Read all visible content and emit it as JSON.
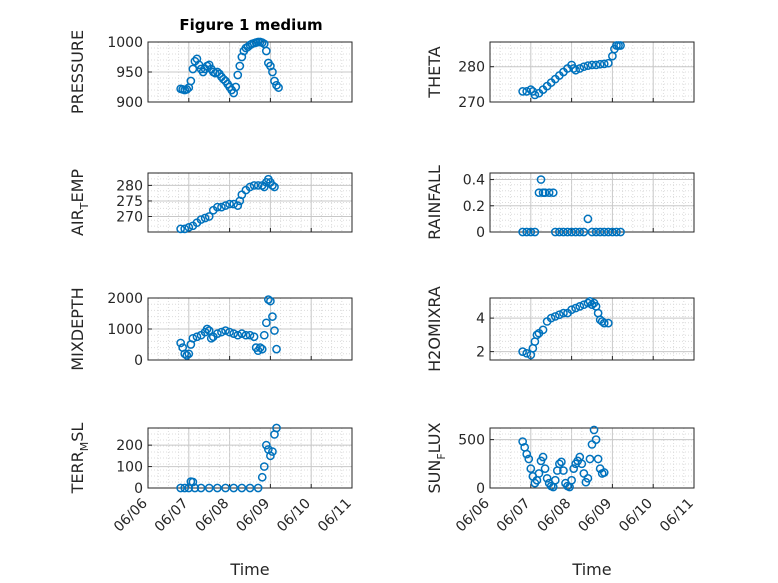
{
  "title": "Figure 1 medium",
  "marker_color": "#0072BD",
  "x_date_ticks": [
    "06/06",
    "06/07",
    "06/08",
    "06/09",
    "06/10",
    "06/11"
  ],
  "x_domain_days": [
    6,
    11
  ],
  "x_axis_label": "Time",
  "chart_data": [
    {
      "type": "scatter",
      "ylabel": "PRESSURE",
      "ylim": [
        900,
        1000
      ],
      "yticks": [
        "900",
        "950",
        "1000"
      ],
      "grid": true,
      "points": [
        [
          6.8,
          922
        ],
        [
          6.85,
          921
        ],
        [
          6.9,
          920
        ],
        [
          6.95,
          921
        ],
        [
          7.0,
          924
        ],
        [
          7.05,
          935
        ],
        [
          7.1,
          955
        ],
        [
          7.15,
          968
        ],
        [
          7.2,
          972
        ],
        [
          7.25,
          962
        ],
        [
          7.3,
          955
        ],
        [
          7.35,
          950
        ],
        [
          7.4,
          955
        ],
        [
          7.45,
          960
        ],
        [
          7.5,
          962
        ],
        [
          7.55,
          955
        ],
        [
          7.6,
          950
        ],
        [
          7.65,
          948
        ],
        [
          7.7,
          950
        ],
        [
          7.75,
          947
        ],
        [
          7.8,
          942
        ],
        [
          7.85,
          938
        ],
        [
          7.9,
          935
        ],
        [
          7.95,
          930
        ],
        [
          8.0,
          925
        ],
        [
          8.05,
          920
        ],
        [
          8.1,
          915
        ],
        [
          8.15,
          925
        ],
        [
          8.2,
          945
        ],
        [
          8.25,
          960
        ],
        [
          8.3,
          975
        ],
        [
          8.35,
          985
        ],
        [
          8.4,
          990
        ],
        [
          8.45,
          992
        ],
        [
          8.5,
          995
        ],
        [
          8.55,
          997
        ],
        [
          8.6,
          998
        ],
        [
          8.65,
          999
        ],
        [
          8.7,
          1000
        ],
        [
          8.75,
          1000
        ],
        [
          8.8,
          999
        ],
        [
          8.85,
          997
        ],
        [
          8.9,
          985
        ],
        [
          8.95,
          965
        ],
        [
          9.0,
          960
        ],
        [
          9.05,
          950
        ],
        [
          9.1,
          935
        ],
        [
          9.15,
          928
        ],
        [
          9.2,
          924
        ]
      ]
    },
    {
      "type": "scatter",
      "ylabel": "THETA",
      "ylim": [
        270,
        287
      ],
      "yticks": [
        "270",
        "280"
      ],
      "grid": true,
      "points": [
        [
          6.8,
          273
        ],
        [
          6.9,
          273
        ],
        [
          7.0,
          273.5
        ],
        [
          7.05,
          273
        ],
        [
          7.1,
          272
        ],
        [
          7.2,
          272.5
        ],
        [
          7.3,
          273.5
        ],
        [
          7.4,
          274.5
        ],
        [
          7.5,
          275.5
        ],
        [
          7.6,
          276.5
        ],
        [
          7.7,
          277.5
        ],
        [
          7.8,
          278.5
        ],
        [
          7.9,
          279.5
        ],
        [
          8.0,
          280.5
        ],
        [
          8.05,
          279.5
        ],
        [
          8.1,
          279
        ],
        [
          8.2,
          279.5
        ],
        [
          8.3,
          280
        ],
        [
          8.4,
          280.3
        ],
        [
          8.5,
          280.5
        ],
        [
          8.6,
          280.5
        ],
        [
          8.7,
          280.7
        ],
        [
          8.8,
          280.8
        ],
        [
          8.9,
          281
        ],
        [
          9.0,
          283
        ],
        [
          9.05,
          285
        ],
        [
          9.1,
          286
        ],
        [
          9.15,
          286
        ],
        [
          9.2,
          286
        ]
      ]
    },
    {
      "type": "scatter",
      "ylabel": "AIR_TEMP",
      "ylim": [
        265,
        284
      ],
      "yticks": [
        "270",
        "275",
        "280"
      ],
      "grid": true,
      "points": [
        [
          6.8,
          266
        ],
        [
          6.9,
          266
        ],
        [
          7.0,
          266.5
        ],
        [
          7.1,
          267
        ],
        [
          7.2,
          268
        ],
        [
          7.3,
          269
        ],
        [
          7.4,
          269.5
        ],
        [
          7.5,
          270
        ],
        [
          7.6,
          272
        ],
        [
          7.7,
          273
        ],
        [
          7.8,
          273
        ],
        [
          7.9,
          273.5
        ],
        [
          8.0,
          274
        ],
        [
          8.1,
          274
        ],
        [
          8.2,
          273.5
        ],
        [
          8.25,
          275
        ],
        [
          8.3,
          277
        ],
        [
          8.4,
          278.5
        ],
        [
          8.5,
          279.5
        ],
        [
          8.6,
          280
        ],
        [
          8.7,
          280
        ],
        [
          8.8,
          280
        ],
        [
          8.85,
          279.5
        ],
        [
          8.9,
          281
        ],
        [
          8.95,
          282
        ],
        [
          9.0,
          281
        ],
        [
          9.05,
          280
        ],
        [
          9.1,
          279.5
        ]
      ]
    },
    {
      "type": "scatter",
      "ylabel": "RAINFALL",
      "ylim": [
        0,
        0.45
      ],
      "yticks": [
        "0",
        "0.2",
        "0.4"
      ],
      "grid": true,
      "points": [
        [
          6.8,
          0
        ],
        [
          6.9,
          0
        ],
        [
          7.0,
          0
        ],
        [
          7.1,
          0
        ],
        [
          7.2,
          0.3
        ],
        [
          7.25,
          0.4
        ],
        [
          7.3,
          0.3
        ],
        [
          7.35,
          0.3
        ],
        [
          7.45,
          0.3
        ],
        [
          7.55,
          0.3
        ],
        [
          7.6,
          0
        ],
        [
          7.7,
          0
        ],
        [
          7.8,
          0
        ],
        [
          7.9,
          0
        ],
        [
          8.0,
          0
        ],
        [
          8.1,
          0
        ],
        [
          8.2,
          0
        ],
        [
          8.3,
          0
        ],
        [
          8.4,
          0.1
        ],
        [
          8.5,
          0
        ],
        [
          8.6,
          0
        ],
        [
          8.7,
          0
        ],
        [
          8.8,
          0
        ],
        [
          8.9,
          0
        ],
        [
          9.0,
          0
        ],
        [
          9.1,
          0
        ],
        [
          9.2,
          0
        ]
      ]
    },
    {
      "type": "scatter",
      "ylabel": "MIXDEPTH",
      "ylim": [
        0,
        2000
      ],
      "yticks": [
        "0",
        "1000",
        "2000"
      ],
      "grid": true,
      "points": [
        [
          6.8,
          550
        ],
        [
          6.85,
          400
        ],
        [
          6.9,
          200
        ],
        [
          6.95,
          150
        ],
        [
          7.0,
          200
        ],
        [
          7.05,
          500
        ],
        [
          7.1,
          700
        ],
        [
          7.2,
          750
        ],
        [
          7.3,
          800
        ],
        [
          7.4,
          900
        ],
        [
          7.45,
          1000
        ],
        [
          7.5,
          950
        ],
        [
          7.55,
          700
        ],
        [
          7.6,
          750
        ],
        [
          7.7,
          850
        ],
        [
          7.8,
          900
        ],
        [
          7.9,
          950
        ],
        [
          8.0,
          900
        ],
        [
          8.1,
          850
        ],
        [
          8.2,
          800
        ],
        [
          8.3,
          850
        ],
        [
          8.4,
          800
        ],
        [
          8.5,
          800
        ],
        [
          8.6,
          750
        ],
        [
          8.65,
          400
        ],
        [
          8.7,
          300
        ],
        [
          8.75,
          400
        ],
        [
          8.8,
          350
        ],
        [
          8.85,
          800
        ],
        [
          8.9,
          1200
        ],
        [
          8.95,
          1950
        ],
        [
          9.0,
          1900
        ],
        [
          9.05,
          1400
        ],
        [
          9.1,
          950
        ],
        [
          9.15,
          350
        ]
      ]
    },
    {
      "type": "scatter",
      "ylabel": "H2OMIXRA",
      "ylim": [
        1.5,
        5.2
      ],
      "yticks": [
        "2",
        "4"
      ],
      "grid": true,
      "points": [
        [
          6.8,
          2
        ],
        [
          6.9,
          1.9
        ],
        [
          7.0,
          1.8
        ],
        [
          7.05,
          2.2
        ],
        [
          7.1,
          2.6
        ],
        [
          7.15,
          3
        ],
        [
          7.2,
          3.1
        ],
        [
          7.3,
          3.3
        ],
        [
          7.4,
          3.8
        ],
        [
          7.5,
          4.0
        ],
        [
          7.6,
          4.1
        ],
        [
          7.7,
          4.2
        ],
        [
          7.8,
          4.3
        ],
        [
          7.9,
          4.3
        ],
        [
          8.0,
          4.5
        ],
        [
          8.1,
          4.6
        ],
        [
          8.2,
          4.7
        ],
        [
          8.3,
          4.8
        ],
        [
          8.4,
          4.9
        ],
        [
          8.45,
          5.0
        ],
        [
          8.5,
          4.8
        ],
        [
          8.55,
          4.9
        ],
        [
          8.6,
          4.7
        ],
        [
          8.65,
          4.3
        ],
        [
          8.7,
          3.9
        ],
        [
          8.75,
          3.8
        ],
        [
          8.8,
          3.7
        ],
        [
          8.9,
          3.7
        ]
      ]
    },
    {
      "type": "scatter",
      "ylabel": "TERR_MSL",
      "ylim": [
        0,
        280
      ],
      "yticks": [
        "0",
        "100",
        "200"
      ],
      "grid": true,
      "points": [
        [
          6.8,
          0
        ],
        [
          6.9,
          0
        ],
        [
          7.0,
          0
        ],
        [
          7.05,
          30
        ],
        [
          7.1,
          28
        ],
        [
          7.15,
          0
        ],
        [
          7.3,
          0
        ],
        [
          7.5,
          0
        ],
        [
          7.7,
          0
        ],
        [
          7.9,
          0
        ],
        [
          8.1,
          0
        ],
        [
          8.3,
          0
        ],
        [
          8.5,
          0
        ],
        [
          8.7,
          0
        ],
        [
          8.8,
          50
        ],
        [
          8.85,
          100
        ],
        [
          8.9,
          200
        ],
        [
          8.95,
          180
        ],
        [
          9.0,
          150
        ],
        [
          9.05,
          170
        ],
        [
          9.1,
          250
        ],
        [
          9.15,
          280
        ]
      ]
    },
    {
      "type": "scatter",
      "ylabel": "SUN_FLUX",
      "ylim": [
        0,
        620
      ],
      "yticks": [
        "0",
        "500"
      ],
      "grid": true,
      "points": [
        [
          6.8,
          480
        ],
        [
          6.85,
          420
        ],
        [
          6.9,
          350
        ],
        [
          6.95,
          300
        ],
        [
          7.0,
          200
        ],
        [
          7.05,
          120
        ],
        [
          7.1,
          50
        ],
        [
          7.15,
          80
        ],
        [
          7.2,
          150
        ],
        [
          7.25,
          280
        ],
        [
          7.3,
          320
        ],
        [
          7.35,
          200
        ],
        [
          7.4,
          100
        ],
        [
          7.45,
          50
        ],
        [
          7.5,
          20
        ],
        [
          7.55,
          10
        ],
        [
          7.6,
          80
        ],
        [
          7.65,
          180
        ],
        [
          7.7,
          250
        ],
        [
          7.75,
          270
        ],
        [
          7.8,
          180
        ],
        [
          7.85,
          50
        ],
        [
          7.9,
          20
        ],
        [
          7.95,
          10
        ],
        [
          8.0,
          80
        ],
        [
          8.05,
          200
        ],
        [
          8.1,
          250
        ],
        [
          8.15,
          280
        ],
        [
          8.2,
          320
        ],
        [
          8.25,
          250
        ],
        [
          8.3,
          150
        ],
        [
          8.35,
          60
        ],
        [
          8.4,
          100
        ],
        [
          8.45,
          300
        ],
        [
          8.5,
          450
        ],
        [
          8.55,
          600
        ],
        [
          8.6,
          500
        ],
        [
          8.65,
          300
        ],
        [
          8.7,
          200
        ],
        [
          8.75,
          150
        ],
        [
          8.8,
          160
        ]
      ]
    }
  ]
}
